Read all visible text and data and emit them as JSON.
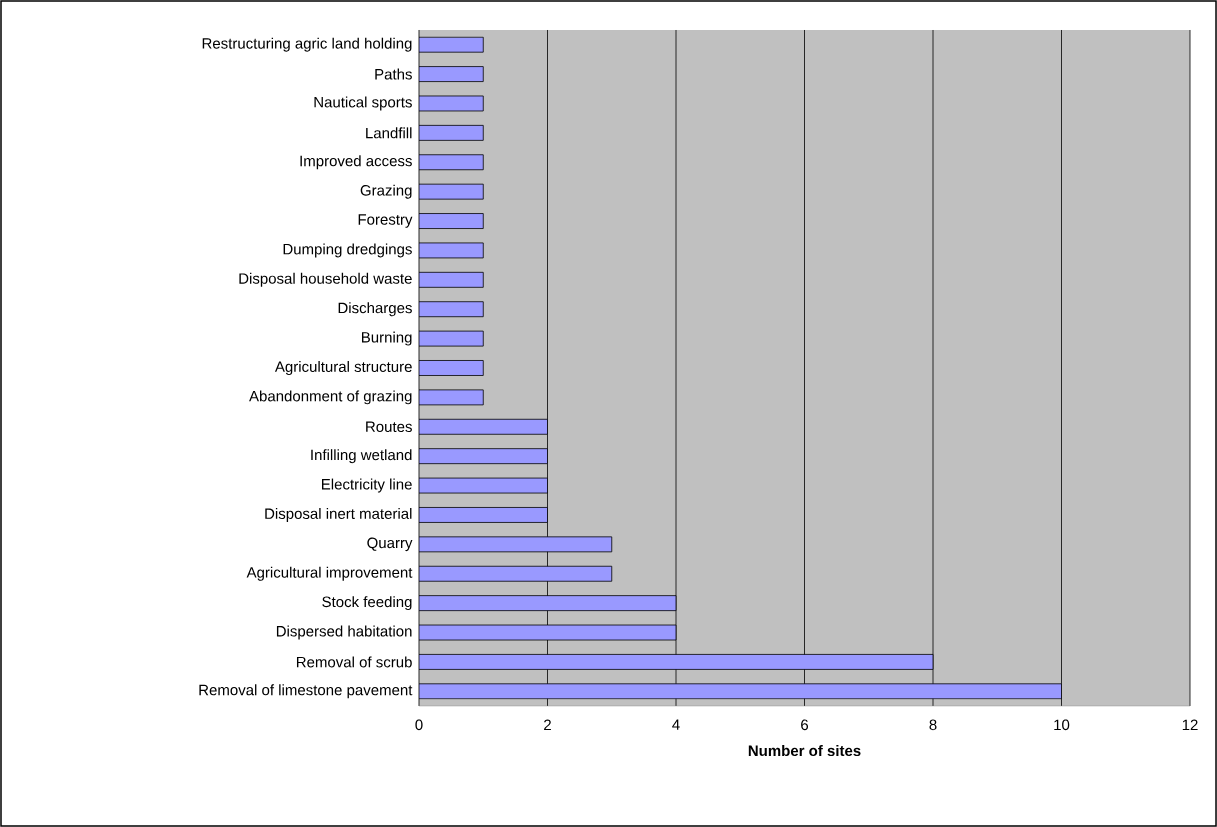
{
  "chart_data": {
    "type": "bar",
    "orientation": "horizontal",
    "xlabel": "Number of sites",
    "categories": [
      "Restructuring agric land holding",
      "Paths",
      "Nautical sports",
      "Landfill",
      "Improved access",
      "Grazing",
      "Forestry",
      "Dumping dredgings",
      "Disposal household waste",
      "Discharges",
      "Burning",
      "Agricultural structure",
      "Abandonment of grazing",
      "Routes",
      "Infilling wetland",
      "Electricity line",
      "Disposal inert material",
      "Quarry",
      "Agricultural improvement",
      "Stock feeding",
      "Dispersed habitation",
      "Removal of scrub",
      "Removal of limestone pavement"
    ],
    "values": [
      1,
      1,
      1,
      1,
      1,
      1,
      1,
      1,
      1,
      1,
      1,
      1,
      1,
      2,
      2,
      2,
      2,
      3,
      3,
      4,
      4,
      8,
      10
    ],
    "color": "#9999ff",
    "xlim": [
      0,
      12
    ],
    "xticks": [
      0,
      2,
      4,
      6,
      8,
      10,
      12
    ],
    "grid": "x"
  }
}
